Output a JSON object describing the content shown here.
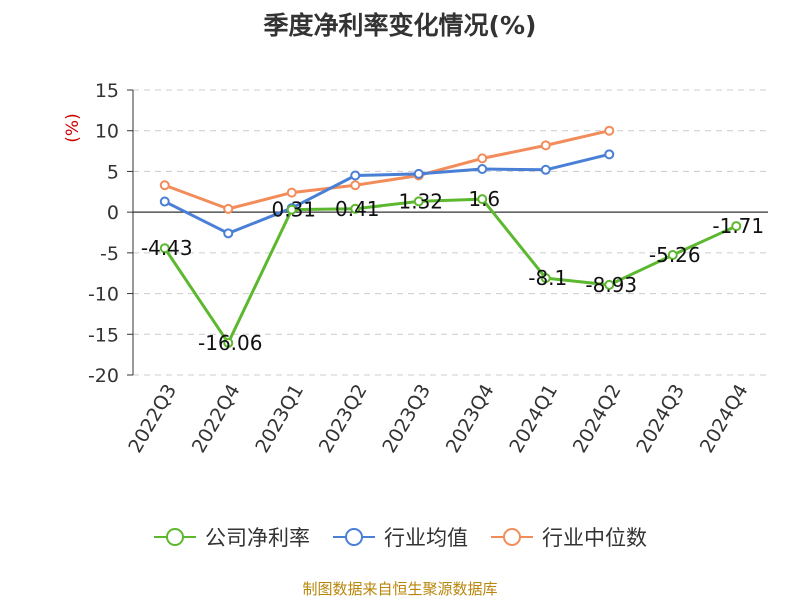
{
  "chart_data": {
    "type": "line",
    "title": "季度净利率变化情况(%)",
    "ylabel": "(%)",
    "categories": [
      "2022Q3",
      "2022Q4",
      "2023Q1",
      "2023Q2",
      "2023Q3",
      "2023Q4",
      "2024Q1",
      "2024Q2",
      "2024Q3",
      "2024Q4"
    ],
    "ylim": [
      -20,
      15
    ],
    "yticks": [
      15,
      10,
      5,
      0,
      -5,
      -10,
      -15,
      -20
    ],
    "grid": true,
    "legend_position": "bottom",
    "series": [
      {
        "name": "公司净利率",
        "color": "#5cb82f",
        "values": [
          -4.43,
          -16.06,
          0.31,
          0.41,
          1.32,
          1.6,
          -8.1,
          -8.93,
          -5.26,
          -1.71
        ],
        "labels": [
          "-4.43",
          "-16.06",
          "0.31",
          "0.41",
          "1.32",
          "1.6",
          "-8.1",
          "-8.93",
          "-5.26",
          "-1.71"
        ]
      },
      {
        "name": "行业均值",
        "color": "#4a7fd6",
        "values": [
          1.3,
          -2.6,
          0.5,
          4.5,
          4.7,
          5.3,
          5.2,
          7.1,
          null,
          null
        ]
      },
      {
        "name": "行业中位数",
        "color": "#f28c5a",
        "values": [
          3.3,
          0.4,
          2.4,
          3.3,
          4.5,
          6.6,
          8.2,
          10.0,
          null,
          null
        ]
      }
    ]
  },
  "source_note": "制图数据来自恒生聚源数据库",
  "colors": {
    "axis_label": "#cc0000",
    "text": "#333333",
    "grid": "#cccccc",
    "source": "#b8860b"
  }
}
